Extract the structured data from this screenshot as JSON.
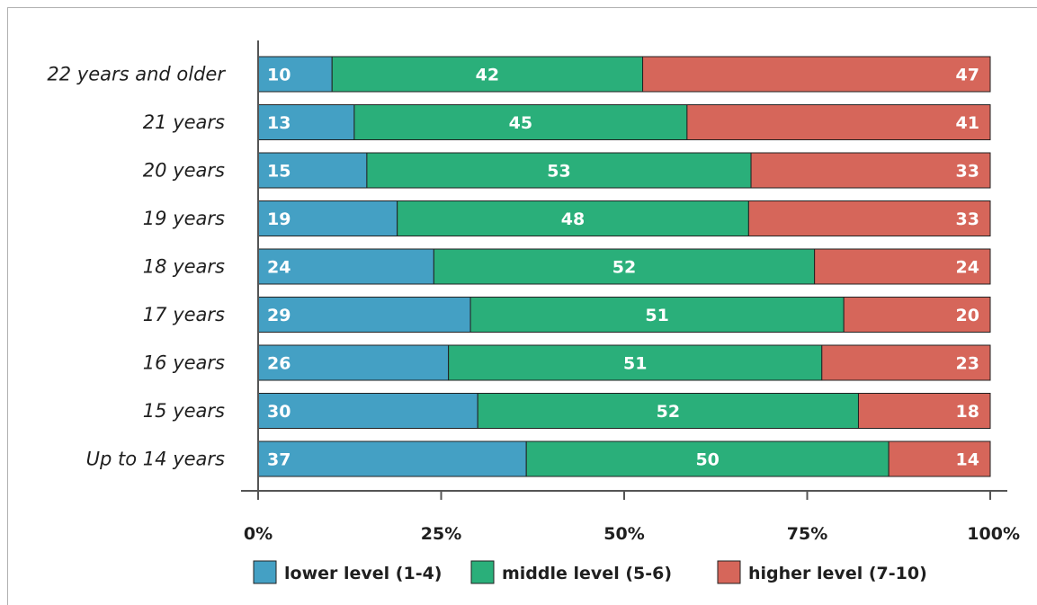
{
  "chart_data": {
    "type": "bar",
    "orientation": "horizontal",
    "stacked": true,
    "categories": [
      "22 years and older",
      "21 years",
      "20 years",
      "19 years",
      "18 years",
      "17 years",
      "16 years",
      "15 years",
      "Up to 14 years"
    ],
    "series": [
      {
        "name": "lower level (1-4)",
        "color": "#44a0c4",
        "values": [
          10,
          13,
          15,
          19,
          24,
          29,
          26,
          30,
          37
        ]
      },
      {
        "name": "middle level (5-6)",
        "color": "#2aaf7a",
        "values": [
          42,
          45,
          53,
          48,
          52,
          51,
          51,
          52,
          50
        ]
      },
      {
        "name": "higher level (7-10)",
        "color": "#d6665a",
        "values": [
          47,
          41,
          33,
          33,
          24,
          20,
          23,
          18,
          14
        ]
      }
    ],
    "xticks": [
      "0%",
      "25%",
      "50%",
      "75%",
      "100%"
    ],
    "xlim": [
      0,
      100
    ],
    "legend_position": "bottom",
    "grid": false,
    "title": "",
    "xlabel": "",
    "ylabel": ""
  }
}
